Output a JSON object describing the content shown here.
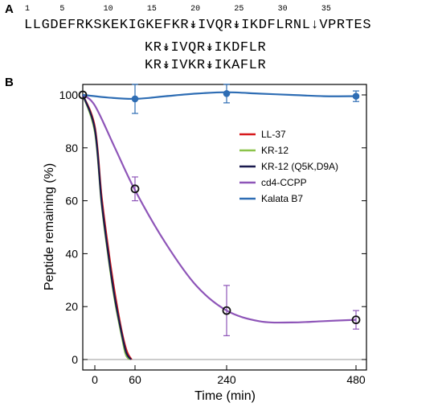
{
  "panel_a": {
    "label": "A",
    "residue_numbers": [
      "1",
      "5",
      "10",
      "15",
      "20",
      "25",
      "30",
      "35"
    ],
    "sequences": [
      "LLGDEFRKSKEKIGKEFKR↡IVQR↡IKDFLRNL↓VPRTES",
      "KR↡IVQR↡IKDFLR",
      "KR↡IVKR↡IKAFLR"
    ]
  },
  "panel_b": {
    "label": "B"
  },
  "chart_data": {
    "type": "line",
    "xlabel": "Time (min)",
    "ylabel": "Peptide remaining (%)",
    "x_ticks": [
      0,
      60,
      240,
      480
    ],
    "y_ticks": [
      0,
      20,
      40,
      60,
      80,
      100
    ],
    "ylim": [
      -2,
      104
    ],
    "grid": false,
    "legend_position": "right",
    "series": [
      {
        "name": "LL-37",
        "color": "#d7191c",
        "x": [
          -5,
          0,
          10,
          20,
          30,
          40,
          48,
          55
        ],
        "y": [
          100,
          88,
          62,
          42,
          25,
          11,
          3,
          0
        ]
      },
      {
        "name": "KR-12",
        "color": "#8bc34a",
        "x": [
          -5,
          0,
          10,
          20,
          30,
          40,
          46,
          52
        ],
        "y": [
          100,
          86,
          59,
          39,
          22,
          9,
          2,
          0
        ]
      },
      {
        "name": "KR-12 (Q5K,D9A)",
        "color": "#1a1a4e",
        "x": [
          -5,
          0,
          10,
          20,
          30,
          40,
          47,
          54
        ],
        "y": [
          100,
          87,
          60,
          40,
          23,
          10,
          2.5,
          0
        ]
      },
      {
        "name": "cd4-CCPP",
        "color": "#8e55b8",
        "x": [
          -5,
          0,
          30,
          60,
          120,
          180,
          240,
          300,
          360,
          420,
          480
        ],
        "y": [
          100,
          96,
          80,
          64,
          44,
          28,
          18.5,
          14.5,
          14,
          14.5,
          15
        ],
        "points": [
          {
            "x": -5,
            "y": 100,
            "err": 0
          },
          {
            "x": 60,
            "y": 64.5,
            "err": 4.5
          },
          {
            "x": 240,
            "y": 18.5,
            "err": 9.5
          },
          {
            "x": 480,
            "y": 15,
            "err": 3.5
          }
        ]
      },
      {
        "name": "Kalata B7",
        "color": "#2e6db4",
        "x": [
          -5,
          20,
          60,
          120,
          180,
          240,
          300,
          360,
          420,
          480
        ],
        "y": [
          100,
          99,
          98.5,
          99.5,
          100.5,
          101,
          100.5,
          100,
          99.5,
          99.5
        ],
        "points": [
          {
            "x": 60,
            "y": 98.5,
            "err": 5.5
          },
          {
            "x": 240,
            "y": 100.5,
            "err": 3.5
          },
          {
            "x": 480,
            "y": 99.5,
            "err": 2
          }
        ]
      }
    ]
  }
}
